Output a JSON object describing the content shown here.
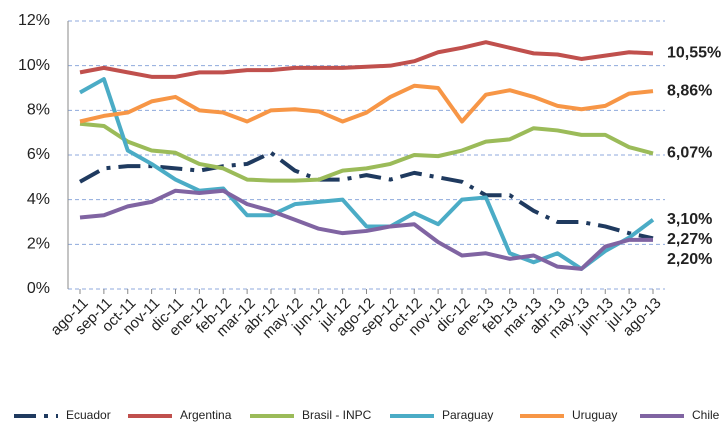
{
  "chart_data": {
    "type": "line",
    "categories": [
      "ago-11",
      "sep-11",
      "oct-11",
      "nov-11",
      "dic-11",
      "ene-12",
      "feb-12",
      "mar-12",
      "abr-12",
      "may-12",
      "jun-12",
      "jul-12",
      "ago-12",
      "sep-12",
      "oct-12",
      "nov-12",
      "dic-12",
      "ene-13",
      "feb-13",
      "mar-13",
      "abr-13",
      "may-13",
      "jun-13",
      "jul-13",
      "ago-13"
    ],
    "ylim": [
      0,
      12
    ],
    "yticks": [
      {
        "value": 0,
        "label": "0%"
      },
      {
        "value": 2,
        "label": "2%"
      },
      {
        "value": 4,
        "label": "4%"
      },
      {
        "value": 6,
        "label": "6%"
      },
      {
        "value": 8,
        "label": "8%"
      },
      {
        "value": 10,
        "label": "10%"
      },
      {
        "value": 12,
        "label": "12%"
      }
    ],
    "grid": true,
    "legend": "bottom",
    "series": [
      {
        "name": "Ecuador",
        "color": "#1f3a5f",
        "line_style": "dash-dot",
        "values": [
          4.8,
          5.4,
          5.5,
          5.5,
          5.4,
          5.3,
          5.5,
          5.6,
          6.1,
          5.3,
          4.9,
          4.9,
          5.1,
          4.9,
          5.2,
          5.0,
          4.8,
          4.2,
          4.2,
          3.5,
          3.0,
          3.0,
          2.8,
          2.5,
          2.27
        ],
        "value_labels": [
          null,
          null,
          null,
          null,
          null,
          null,
          null,
          null,
          null,
          null,
          null,
          null,
          null,
          null,
          null,
          null,
          null,
          null,
          null,
          null,
          null,
          null,
          null,
          null,
          "2,27%"
        ]
      },
      {
        "name": "Argentina",
        "color": "#c0504d",
        "line_style": "solid",
        "values": [
          9.7,
          9.9,
          9.7,
          9.5,
          9.5,
          9.7,
          9.7,
          9.8,
          9.8,
          9.9,
          9.9,
          9.9,
          9.95,
          10.0,
          10.2,
          10.6,
          10.8,
          11.05,
          10.8,
          10.55,
          10.5,
          10.3,
          10.45,
          10.6,
          10.55
        ],
        "value_labels": [
          null,
          null,
          null,
          null,
          null,
          null,
          null,
          null,
          null,
          null,
          null,
          null,
          null,
          null,
          null,
          null,
          null,
          null,
          null,
          null,
          null,
          null,
          null,
          null,
          "10,55%"
        ]
      },
      {
        "name": "Brasil - INPC",
        "color": "#9bbb59",
        "line_style": "solid",
        "values": [
          7.4,
          7.3,
          6.6,
          6.2,
          6.1,
          5.6,
          5.4,
          4.9,
          4.85,
          4.85,
          4.9,
          5.3,
          5.4,
          5.6,
          6.0,
          5.95,
          6.2,
          6.6,
          6.7,
          7.2,
          7.1,
          6.9,
          6.9,
          6.35,
          6.07
        ],
        "value_labels": [
          null,
          null,
          null,
          null,
          null,
          null,
          null,
          null,
          null,
          null,
          null,
          null,
          null,
          null,
          null,
          null,
          null,
          null,
          null,
          null,
          null,
          null,
          null,
          null,
          "6,07%"
        ]
      },
      {
        "name": "Paraguay",
        "color": "#4bacc6",
        "line_style": "solid",
        "values": [
          8.8,
          9.4,
          6.2,
          5.6,
          4.9,
          4.4,
          4.5,
          3.3,
          3.3,
          3.8,
          3.9,
          4.0,
          2.8,
          2.8,
          3.4,
          2.9,
          4.0,
          4.1,
          1.6,
          1.2,
          1.6,
          0.9,
          1.7,
          2.3,
          3.1
        ],
        "value_labels": [
          null,
          null,
          null,
          null,
          null,
          null,
          null,
          null,
          null,
          null,
          null,
          null,
          null,
          null,
          null,
          null,
          null,
          null,
          null,
          null,
          null,
          null,
          null,
          null,
          "3,10%"
        ]
      },
      {
        "name": "Uruguay",
        "color": "#f79646",
        "line_style": "solid",
        "values": [
          7.5,
          7.75,
          7.9,
          8.4,
          8.6,
          8.0,
          7.9,
          7.5,
          8.0,
          8.05,
          7.95,
          7.5,
          7.9,
          8.6,
          9.1,
          9.0,
          7.5,
          8.7,
          8.9,
          8.6,
          8.2,
          8.05,
          8.2,
          8.75,
          8.86
        ],
        "value_labels": [
          null,
          null,
          null,
          null,
          null,
          null,
          null,
          null,
          null,
          null,
          null,
          null,
          null,
          null,
          null,
          null,
          null,
          null,
          null,
          null,
          null,
          null,
          null,
          null,
          "8,86%"
        ]
      },
      {
        "name": "Chile",
        "color": "#8064a2",
        "line_style": "solid",
        "values": [
          3.2,
          3.3,
          3.7,
          3.9,
          4.4,
          4.3,
          4.4,
          3.8,
          3.5,
          3.1,
          2.7,
          2.5,
          2.6,
          2.8,
          2.9,
          2.1,
          1.5,
          1.6,
          1.35,
          1.5,
          1.0,
          0.9,
          1.9,
          2.2,
          2.2
        ],
        "value_labels": [
          null,
          null,
          null,
          null,
          null,
          null,
          null,
          null,
          null,
          null,
          null,
          null,
          null,
          null,
          null,
          null,
          null,
          null,
          null,
          null,
          null,
          null,
          null,
          null,
          "2,20%"
        ]
      }
    ]
  }
}
